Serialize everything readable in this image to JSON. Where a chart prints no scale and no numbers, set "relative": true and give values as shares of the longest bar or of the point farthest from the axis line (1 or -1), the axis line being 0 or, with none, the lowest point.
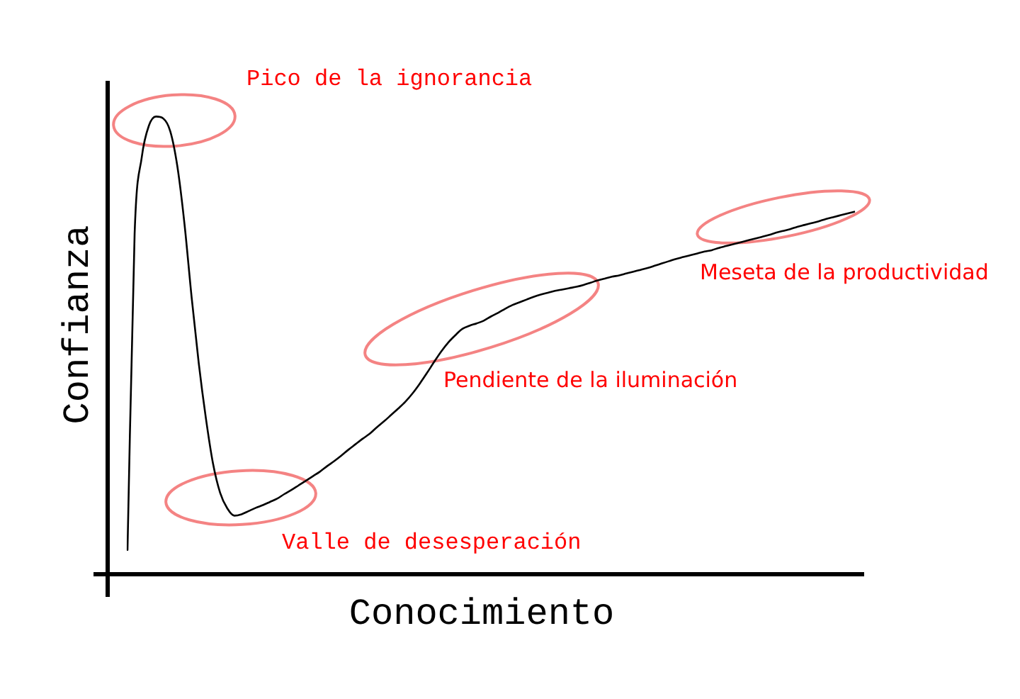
{
  "chart_data": {
    "type": "line",
    "xlabel": "Conocimiento",
    "ylabel": "Confianza",
    "relative": true,
    "color": "#000000",
    "marker": "none",
    "legend": false,
    "grid": false,
    "tick_labels": false,
    "categories": [
      null,
      null,
      null,
      null,
      null,
      null,
      null,
      null,
      null,
      null,
      null,
      null,
      null,
      null,
      null,
      null,
      null,
      null,
      null,
      null,
      null,
      null,
      null,
      null,
      null,
      null,
      null,
      null,
      null,
      null,
      null,
      null,
      null,
      null,
      null,
      null,
      null,
      null,
      null,
      null,
      null,
      null,
      null,
      null,
      null,
      null,
      null,
      null,
      null,
      null,
      null,
      null,
      null,
      null,
      null,
      null,
      null,
      null,
      null,
      null,
      null,
      null,
      null,
      null,
      null,
      null,
      null,
      null,
      null,
      null,
      null,
      null,
      null,
      null,
      null,
      null,
      null,
      null,
      null,
      null,
      null,
      null,
      null,
      null,
      null,
      null,
      null,
      null,
      null,
      null,
      null,
      null,
      null,
      null,
      null,
      null,
      null,
      null,
      null,
      null,
      null,
      null,
      null
    ],
    "values": [
      0.053,
      0.744,
      0.911,
      0.98,
      1.0,
      0.996,
      0.968,
      0.891,
      0.765,
      0.605,
      0.461,
      0.341,
      0.242,
      0.178,
      0.144,
      0.128,
      0.131,
      0.138,
      0.145,
      0.151,
      0.158,
      0.165,
      0.175,
      0.184,
      0.194,
      0.204,
      0.214,
      0.224,
      0.236,
      0.247,
      0.259,
      0.272,
      0.284,
      0.296,
      0.307,
      0.321,
      0.334,
      0.348,
      0.362,
      0.377,
      0.395,
      0.416,
      0.439,
      0.463,
      0.486,
      0.506,
      0.522,
      0.536,
      0.543,
      0.548,
      0.554,
      0.563,
      0.571,
      0.58,
      0.588,
      0.594,
      0.6,
      0.606,
      0.611,
      0.615,
      0.619,
      0.622,
      0.625,
      0.628,
      0.632,
      0.637,
      0.642,
      0.646,
      0.65,
      0.653,
      0.657,
      0.661,
      0.665,
      0.669,
      0.674,
      0.679,
      0.684,
      0.689,
      0.693,
      0.697,
      0.701,
      0.705,
      0.708,
      0.713,
      0.717,
      0.721,
      0.725,
      0.729,
      0.733,
      0.737,
      0.741,
      0.746,
      0.75,
      0.754,
      0.759,
      0.763,
      0.767,
      0.771,
      0.776,
      0.78,
      0.784,
      0.788,
      0.792
    ],
    "annotations": [
      "Pico de la ignorancia",
      "Valle de desesperación",
      "Pendiente de la iluminación",
      "Meseta de la productividad"
    ]
  }
}
